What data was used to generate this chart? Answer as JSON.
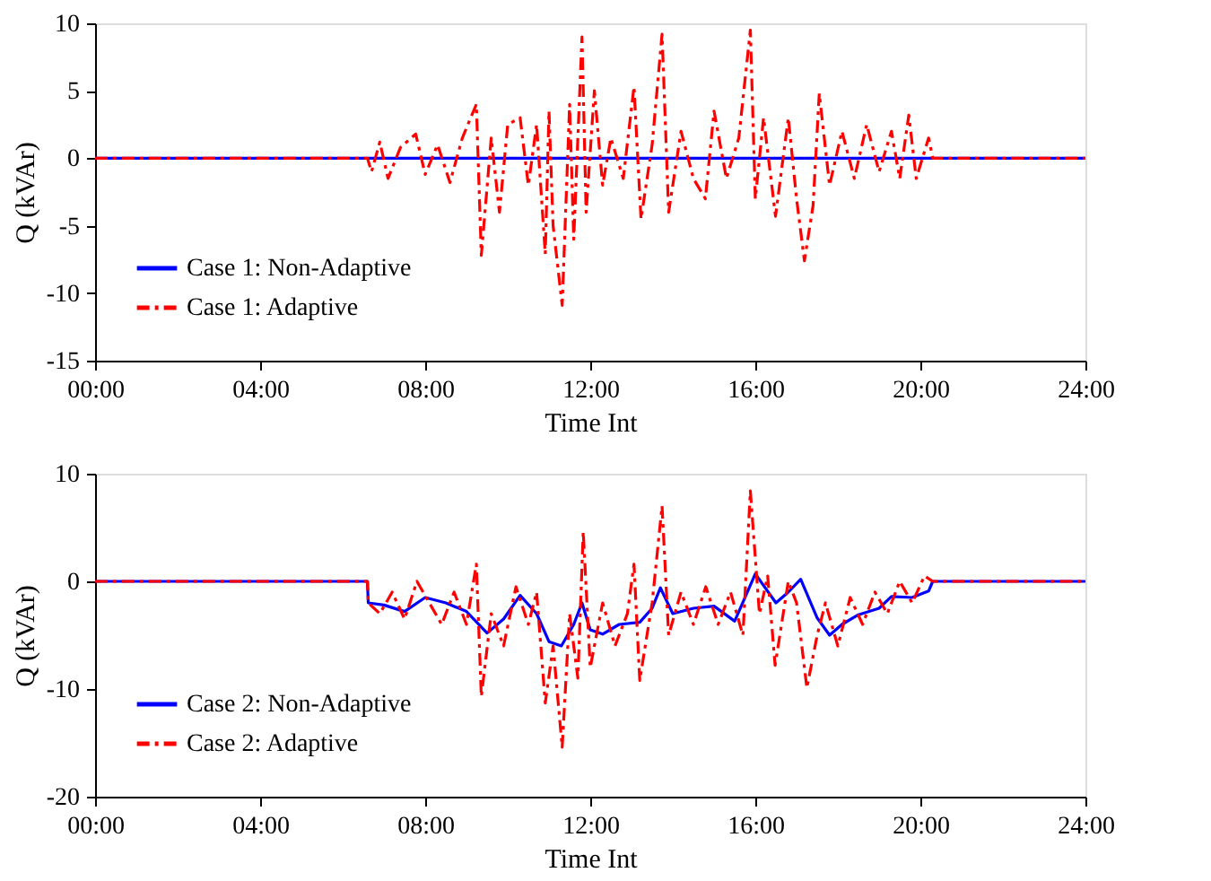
{
  "chart_data": [
    {
      "type": "line",
      "xlabel": "Time Int",
      "ylabel": "Q (kVAr)",
      "xlim": [
        0,
        24
      ],
      "ylim": [
        -15,
        10
      ],
      "xticks": [
        {
          "value": 0,
          "label": "00:00"
        },
        {
          "value": 4,
          "label": "04:00"
        },
        {
          "value": 8,
          "label": "08:00"
        },
        {
          "value": 12,
          "label": "12:00"
        },
        {
          "value": 16,
          "label": "16:00"
        },
        {
          "value": 20,
          "label": "20:00"
        },
        {
          "value": 24,
          "label": "24:00"
        }
      ],
      "yticks": [
        -15,
        -10,
        -5,
        0,
        5,
        10
      ],
      "grid": false,
      "legend": "bottom left",
      "marker": "none",
      "series": [
        {
          "name": "Case 1: Non-Adaptive",
          "color": "#0000ff",
          "line_style": "solid",
          "x": [
            0,
            24
          ],
          "values": [
            0,
            0
          ]
        },
        {
          "name": "Case 1: Adaptive",
          "color": "#ff0000",
          "line_style": "dashed",
          "x": [
            0,
            6.6,
            6.7,
            6.9,
            7.1,
            7.4,
            7.77,
            8.0,
            8.3,
            8.6,
            8.9,
            9.24,
            9.36,
            9.6,
            9.8,
            10.0,
            10.3,
            10.5,
            10.7,
            10.91,
            11.0,
            11.1,
            11.32,
            11.5,
            11.6,
            11.8,
            11.9,
            12.1,
            12.3,
            12.5,
            12.8,
            13.06,
            13.23,
            13.5,
            13.74,
            13.9,
            14.2,
            14.5,
            14.79,
            15.0,
            15.3,
            15.6,
            15.88,
            16.0,
            16.2,
            16.49,
            16.8,
            17.0,
            17.19,
            17.4,
            17.55,
            17.8,
            18.1,
            18.4,
            18.7,
            19.0,
            19.3,
            19.5,
            19.72,
            19.9,
            20.2,
            20.3,
            24
          ],
          "values": [
            0,
            0,
            -1,
            1.2,
            -1.5,
            0.8,
            1.8,
            -1.2,
            1.0,
            -1.8,
            1.5,
            4,
            -7.2,
            1.5,
            -4,
            2.5,
            3,
            -2,
            2.5,
            -7.1,
            3.5,
            -5,
            -10.9,
            4,
            -6,
            9,
            -4,
            5,
            -2,
            1.5,
            -1.5,
            5.3,
            -4.5,
            1,
            9.2,
            -4,
            2,
            -1.5,
            -3,
            3.5,
            -1.5,
            1.5,
            9.5,
            -3,
            3,
            -4.3,
            3,
            -3,
            -7.6,
            -3.5,
            4.8,
            -2,
            2,
            -1.5,
            2.5,
            -1,
            2,
            -1.5,
            3.2,
            -1.5,
            1.5,
            0,
            0
          ]
        }
      ]
    },
    {
      "type": "line",
      "xlabel": "Time Int",
      "ylabel": "Q (kVAr)",
      "xlim": [
        0,
        24
      ],
      "ylim": [
        -20,
        10
      ],
      "xticks": [
        {
          "value": 0,
          "label": "00:00"
        },
        {
          "value": 4,
          "label": "04:00"
        },
        {
          "value": 8,
          "label": "08:00"
        },
        {
          "value": 12,
          "label": "12:00"
        },
        {
          "value": 16,
          "label": "16:00"
        },
        {
          "value": 20,
          "label": "20:00"
        },
        {
          "value": 24,
          "label": "24:00"
        }
      ],
      "yticks": [
        -20,
        -10,
        0,
        10
      ],
      "grid": false,
      "legend": "bottom left",
      "marker": "none",
      "series": [
        {
          "name": "Case 2: Non-Adaptive",
          "color": "#0000ff",
          "line_style": "solid",
          "x": [
            0,
            6.6,
            6.62,
            7.0,
            7.5,
            8.0,
            8.5,
            9.0,
            9.5,
            9.9,
            10.3,
            10.7,
            11.0,
            11.3,
            11.6,
            11.8,
            12.0,
            12.3,
            12.7,
            13.2,
            13.5,
            13.7,
            14.0,
            14.5,
            15.0,
            15.5,
            16.0,
            16.5,
            16.8,
            17.1,
            17.5,
            17.8,
            18.1,
            18.5,
            19.0,
            19.3,
            19.8,
            20.2,
            20.3,
            24
          ],
          "values": [
            0,
            0,
            -2,
            -2.2,
            -2.8,
            -1.5,
            -2,
            -2.8,
            -4.8,
            -3.5,
            -1.3,
            -3,
            -5.6,
            -6,
            -4,
            -2,
            -4.5,
            -4.9,
            -4,
            -3.8,
            -2.5,
            -0.6,
            -3,
            -2.5,
            -2.3,
            -3.7,
            0.7,
            -2,
            -1,
            0.2,
            -3.4,
            -5,
            -4,
            -3.1,
            -2.5,
            -1.4,
            -1.5,
            -0.9,
            0,
            0
          ]
        },
        {
          "name": "Case 2: Adaptive",
          "color": "#ff0000",
          "line_style": "dashed",
          "x": [
            0,
            6.6,
            6.62,
            6.9,
            7.2,
            7.5,
            7.8,
            8.1,
            8.4,
            8.7,
            9.0,
            9.24,
            9.36,
            9.6,
            9.9,
            10.2,
            10.5,
            10.7,
            10.91,
            11.1,
            11.32,
            11.5,
            11.7,
            11.83,
            12.0,
            12.3,
            12.6,
            12.9,
            13.06,
            13.2,
            13.5,
            13.74,
            13.9,
            14.2,
            14.5,
            14.8,
            15.1,
            15.4,
            15.7,
            15.88,
            16.1,
            16.3,
            16.48,
            16.8,
            17.0,
            17.25,
            17.5,
            17.7,
            18.0,
            18.3,
            18.6,
            18.9,
            19.2,
            19.5,
            19.8,
            20.1,
            20.3,
            24
          ],
          "values": [
            0,
            0,
            -2,
            -3,
            -1,
            -3.5,
            0,
            -2,
            -4,
            -1,
            -4,
            1.6,
            -10.7,
            -3,
            -6,
            -0.5,
            -4,
            -1,
            -11.3,
            -6,
            -15.4,
            -3,
            -9,
            4.6,
            -8,
            -2,
            -6,
            -3,
            1.6,
            -9.2,
            -2,
            7,
            -5,
            -1,
            -4,
            -0.5,
            -4,
            -1,
            -5,
            8.4,
            -3,
            0.5,
            -7.8,
            0,
            -2,
            -9.9,
            -5,
            -2,
            -6,
            -1.5,
            -4,
            -1,
            -3,
            0,
            -2,
            0.5,
            0,
            0
          ]
        }
      ]
    }
  ]
}
